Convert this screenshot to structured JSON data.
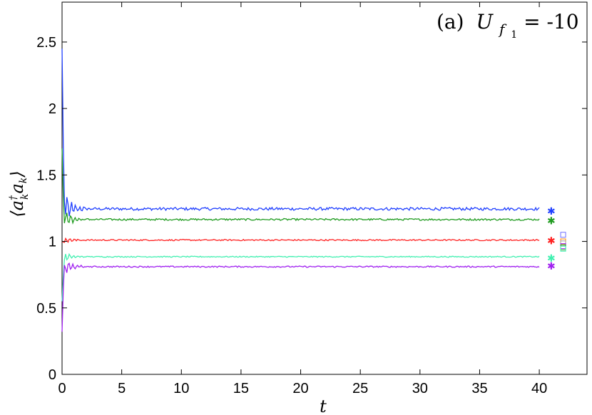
{
  "chart_data": {
    "type": "line",
    "annotation_prefix": "(a)",
    "annotation_var": "U",
    "annotation_sub": "f",
    "annotation_subsub": "1",
    "annotation_rest": " = -10",
    "xlabel": "t",
    "ylabel": "⟨a†k ak⟩",
    "xlim": [
      0,
      44
    ],
    "ylim": [
      0,
      2.8
    ],
    "xticks": [
      "0",
      "5",
      "10",
      "15",
      "20",
      "25",
      "30",
      "35",
      "40"
    ],
    "yticks": [
      "0",
      "0.5",
      "1",
      "1.5",
      "2",
      "2.5"
    ],
    "grid": false,
    "series": [
      {
        "color": "#1f3fff",
        "initial": 2.45,
        "steady": 1.245,
        "transient_amp": 0.16,
        "noise": 0.022,
        "star_value": 1.235
      },
      {
        "color": "#1f9b1f",
        "initial": 1.7,
        "steady": 1.165,
        "transient_amp": 0.1,
        "noise": 0.014,
        "star_value": 1.16
      },
      {
        "color": "#ff2020",
        "initial": 1.0,
        "steady": 1.01,
        "transient_amp": 0.03,
        "noise": 0.01,
        "star_value": 1.01
      },
      {
        "color": "#40f0b0",
        "initial": 0.55,
        "steady": 0.885,
        "transient_amp": 0.05,
        "noise": 0.008,
        "star_value": 0.88
      },
      {
        "color": "#a020f0",
        "initial": 0.32,
        "steady": 0.81,
        "transient_amp": 0.08,
        "noise": 0.01,
        "star_value": 0.82
      }
    ],
    "star_x": 41,
    "square_x": 42,
    "square_markers": [
      {
        "color": "#6f6fff",
        "value": 1.05
      },
      {
        "color": "#ff8c00",
        "value": 1.0
      },
      {
        "color": "#a0a0a0",
        "value": 0.985
      },
      {
        "color": "#a020f0",
        "value": 0.965
      },
      {
        "color": "#1f9b1f",
        "value": 0.955
      },
      {
        "color": "#40f0b0",
        "value": 0.945
      }
    ]
  }
}
